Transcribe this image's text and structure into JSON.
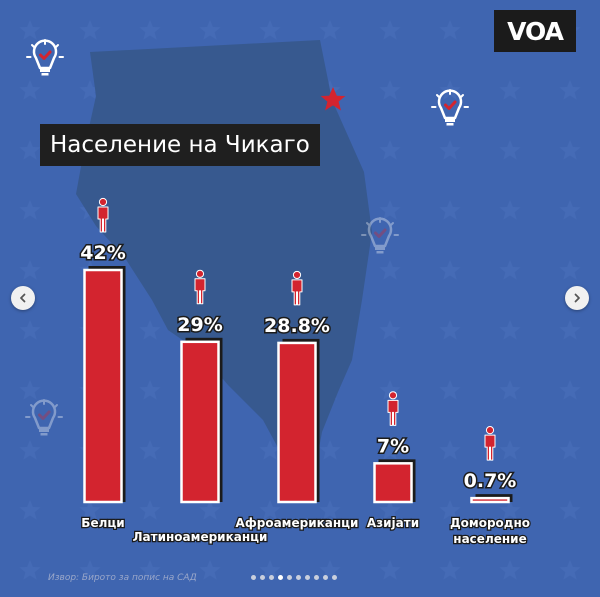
{
  "brand": {
    "logo": "VOA"
  },
  "icons": [
    "bulb-check-icon",
    "star-icon",
    "person-icon",
    "chevron-left-icon",
    "chevron-right-icon"
  ],
  "colors": {
    "background": "#3f65b0",
    "map": "#37598f",
    "bar": "#d3242f",
    "bar_outline": "#ffffff",
    "bar_shadow": "#1b1b1b",
    "person": "#d3242f",
    "star": "#d3242f",
    "title_background": "#1f1f1f"
  },
  "chart_data": {
    "type": "bar",
    "title": "Население на Чикаго",
    "categories": [
      "Белци",
      "Латиноамериканци",
      "Афроамериканци",
      "Азијати",
      "Домородно население"
    ],
    "category_lines": [
      [
        "Белци"
      ],
      [
        "Латиноамериканци"
      ],
      [
        "Афроамериканци"
      ],
      [
        "Азијати"
      ],
      [
        "Домородно",
        "население"
      ]
    ],
    "values": [
      42,
      29,
      28.8,
      7,
      0.7
    ],
    "value_labels": [
      "42%",
      "29%",
      "28.8%",
      "7%",
      "0.7%"
    ],
    "unit": "%",
    "ylim": [
      0,
      42
    ],
    "grid": false,
    "legend": "none"
  },
  "footer": {
    "source": "Извор: Бирото за попис на САД",
    "pagination": {
      "total": 10,
      "active": 3
    }
  }
}
